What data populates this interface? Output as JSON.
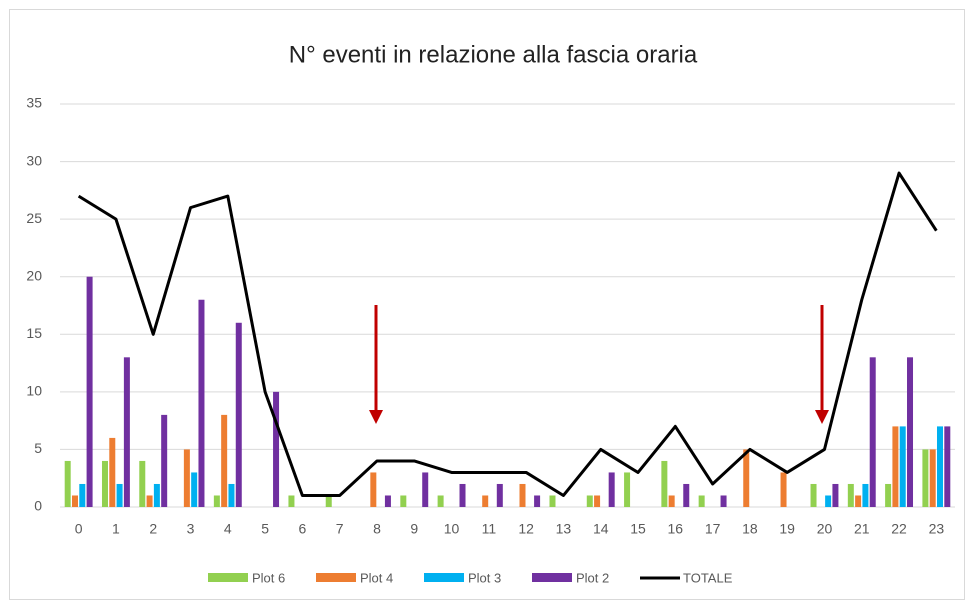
{
  "chart_data": {
    "type": "bar-line",
    "title": "N° eventi in relazione alla fascia oraria",
    "categories": [
      "0",
      "1",
      "2",
      "3",
      "4",
      "5",
      "6",
      "7",
      "8",
      "9",
      "10",
      "11",
      "12",
      "13",
      "14",
      "15",
      "16",
      "17",
      "18",
      "19",
      "20",
      "21",
      "22",
      "23"
    ],
    "series": [
      {
        "name": "Plot 6",
        "color": "#92d050",
        "kind": "bar",
        "values": [
          4,
          4,
          4,
          0,
          1,
          0,
          1,
          1,
          0,
          1,
          1,
          0,
          0,
          1,
          1,
          3,
          4,
          1,
          0,
          0,
          2,
          2,
          2,
          5
        ]
      },
      {
        "name": "Plot 4",
        "color": "#ed7d31",
        "kind": "bar",
        "values": [
          1,
          6,
          1,
          5,
          8,
          0,
          0,
          0,
          3,
          0,
          0,
          1,
          2,
          0,
          1,
          0,
          1,
          0,
          5,
          3,
          0,
          1,
          7,
          5
        ]
      },
      {
        "name": "Plot 3",
        "color": "#00b0f0",
        "kind": "bar",
        "values": [
          2,
          2,
          2,
          3,
          2,
          0,
          0,
          0,
          0,
          0,
          0,
          0,
          0,
          0,
          0,
          0,
          0,
          0,
          0,
          0,
          1,
          2,
          7,
          7
        ]
      },
      {
        "name": "Plot 2",
        "color": "#7030a0",
        "kind": "bar",
        "values": [
          20,
          13,
          8,
          18,
          16,
          10,
          0,
          0,
          1,
          3,
          2,
          2,
          1,
          0,
          3,
          0,
          2,
          1,
          0,
          0,
          2,
          13,
          13,
          7
        ]
      },
      {
        "name": "TOTALE",
        "color": "#000000",
        "kind": "line",
        "values": [
          27,
          25,
          15,
          26,
          27,
          10,
          1,
          1,
          4,
          4,
          3,
          3,
          3,
          1,
          5,
          3,
          7,
          2,
          5,
          3,
          5,
          18,
          29,
          24
        ]
      }
    ],
    "ylim": [
      0,
      35
    ],
    "yticks": [
      0,
      5,
      10,
      15,
      20,
      25,
      30,
      35
    ],
    "grid": true,
    "legend": "bottom"
  }
}
